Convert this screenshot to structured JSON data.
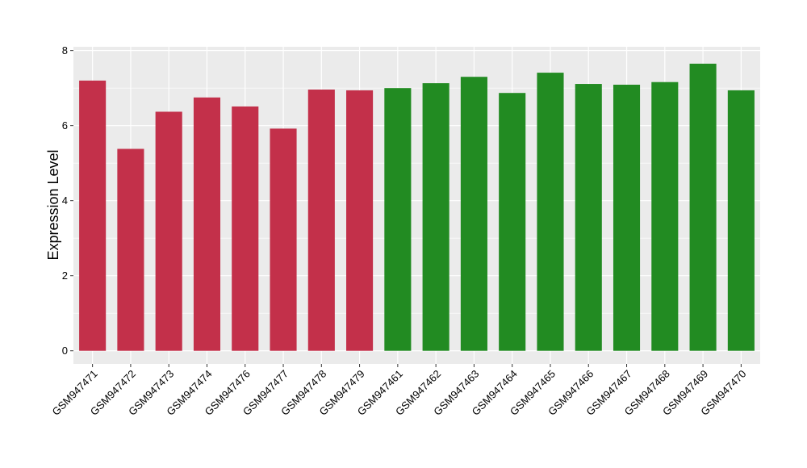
{
  "chart_data": {
    "type": "bar",
    "title": "",
    "xlabel": "",
    "ylabel": "Expression Level",
    "ylim": [
      -0.35,
      8.1
    ],
    "yticks": [
      0,
      2,
      4,
      6,
      8
    ],
    "grid": true,
    "legend": "none",
    "categories": [
      "GSM947471",
      "GSM947472",
      "GSM947473",
      "GSM947474",
      "GSM947476",
      "GSM947477",
      "GSM947478",
      "GSM947479",
      "GSM947461",
      "GSM947462",
      "GSM947463",
      "GSM947464",
      "GSM947465",
      "GSM947466",
      "GSM947467",
      "GSM947468",
      "GSM947469",
      "GSM947470"
    ],
    "values": [
      7.2,
      5.38,
      6.37,
      6.75,
      6.51,
      5.92,
      6.96,
      6.94,
      7.0,
      7.13,
      7.3,
      6.87,
      7.41,
      7.11,
      7.09,
      7.16,
      7.65,
      6.94
    ],
    "groups": [
      "a",
      "a",
      "a",
      "a",
      "a",
      "a",
      "a",
      "a",
      "b",
      "b",
      "b",
      "b",
      "b",
      "b",
      "b",
      "b",
      "b",
      "b"
    ],
    "group_colors": {
      "a": "#c3304a",
      "b": "#228b22"
    },
    "panel_color": "#ebebeb",
    "grid_color": "#ffffff"
  }
}
